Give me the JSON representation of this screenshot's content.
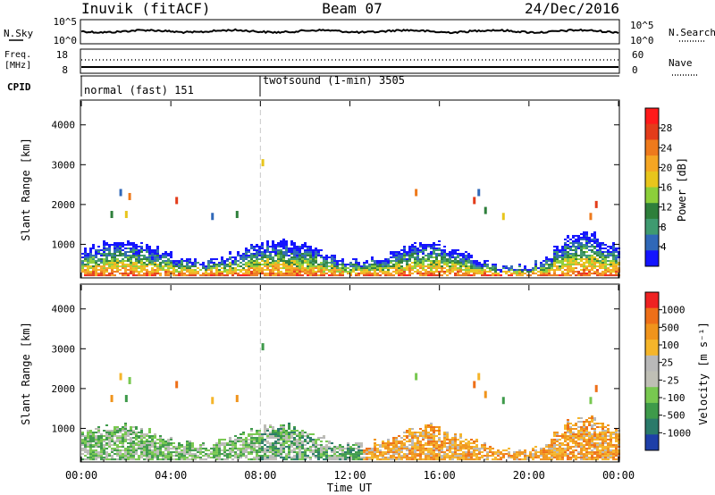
{
  "header": {
    "station": "Inuvik (fitACF)",
    "beam": "Beam 07",
    "date": "24/Dec/2016"
  },
  "noise_panel": {
    "left_label": "N.Sky",
    "left_ticks": [
      "10^5",
      "10^0"
    ],
    "right_ticks": [
      "10^5",
      "10^0"
    ],
    "right_label": "N.Search"
  },
  "freq_panel": {
    "left_label_1": "Freq.",
    "left_label_2": "[MHz]",
    "left_ticks": [
      "18",
      "8"
    ],
    "right_ticks": [
      "60",
      "0"
    ],
    "right_label": "Nave",
    "freq_level_mhz": 10.4,
    "nave_level": 45
  },
  "cpid_panel": {
    "label": "CPID",
    "modes": [
      {
        "text": "normal (fast) 151",
        "start_hour": 0
      },
      {
        "text": "twofsound (1-min) 3505",
        "start_hour": 8
      }
    ]
  },
  "chart_data": [
    {
      "type": "heatmap",
      "name": "power",
      "ylabel": "Slant Range [km]",
      "yticks": [
        1000,
        2000,
        3000,
        4000
      ],
      "ylim": [
        180,
        4600
      ],
      "xlim": [
        0,
        24
      ],
      "colorbar_label": "Power [dB]",
      "colorbar_ticks": [
        4,
        8,
        12,
        16,
        20,
        24,
        28
      ],
      "colorbar_range": [
        0,
        32
      ],
      "colors": [
        "#1414ff",
        "#3068b8",
        "#3f9a70",
        "#2e7f3b",
        "#8ccf3a",
        "#e8c51c",
        "#f5a623",
        "#ee7a1c",
        "#e33c1a",
        "#ff1a1a"
      ],
      "scatter_echoes": [
        {
          "hour": 1.7,
          "range_km": 2300
        },
        {
          "hour": 1.3,
          "range_km": 1750
        },
        {
          "hour": 1.95,
          "range_km": 1750
        },
        {
          "hour": 2.1,
          "range_km": 2200
        },
        {
          "hour": 4.2,
          "range_km": 2100
        },
        {
          "hour": 5.8,
          "range_km": 1700
        },
        {
          "hour": 6.9,
          "range_km": 1750
        },
        {
          "hour": 8.05,
          "range_km": 3050
        },
        {
          "hour": 14.9,
          "range_km": 2300
        },
        {
          "hour": 17.5,
          "range_km": 2100
        },
        {
          "hour": 17.7,
          "range_km": 2300
        },
        {
          "hour": 18.0,
          "range_km": 1850
        },
        {
          "hour": 18.8,
          "range_km": 1700
        },
        {
          "hour": 22.7,
          "range_km": 1700
        },
        {
          "hour": 22.95,
          "range_km": 2000
        }
      ]
    },
    {
      "type": "heatmap",
      "name": "velocity",
      "ylabel": "Slant Range [km]",
      "yticks": [
        1000,
        2000,
        3000,
        4000
      ],
      "ylim": [
        180,
        4600
      ],
      "xlim": [
        0,
        24
      ],
      "colorbar_label": "Velocity [m s⁻¹]",
      "colorbar_ticks": [
        1000,
        500,
        100,
        25,
        -25,
        -100,
        -500,
        -1000
      ],
      "colors": [
        "#1e3fa8",
        "#2a7a6a",
        "#3e9a4a",
        "#78c850",
        "#bfbfb5",
        "#b8b8b8",
        "#f5b52a",
        "#f0941c",
        "#ee6f18",
        "#ee2222"
      ]
    }
  ],
  "xaxis": {
    "label": "Time UT",
    "ticks": [
      "00:00",
      "04:00",
      "08:00",
      "12:00",
      "16:00",
      "20:00",
      "00:00"
    ]
  }
}
